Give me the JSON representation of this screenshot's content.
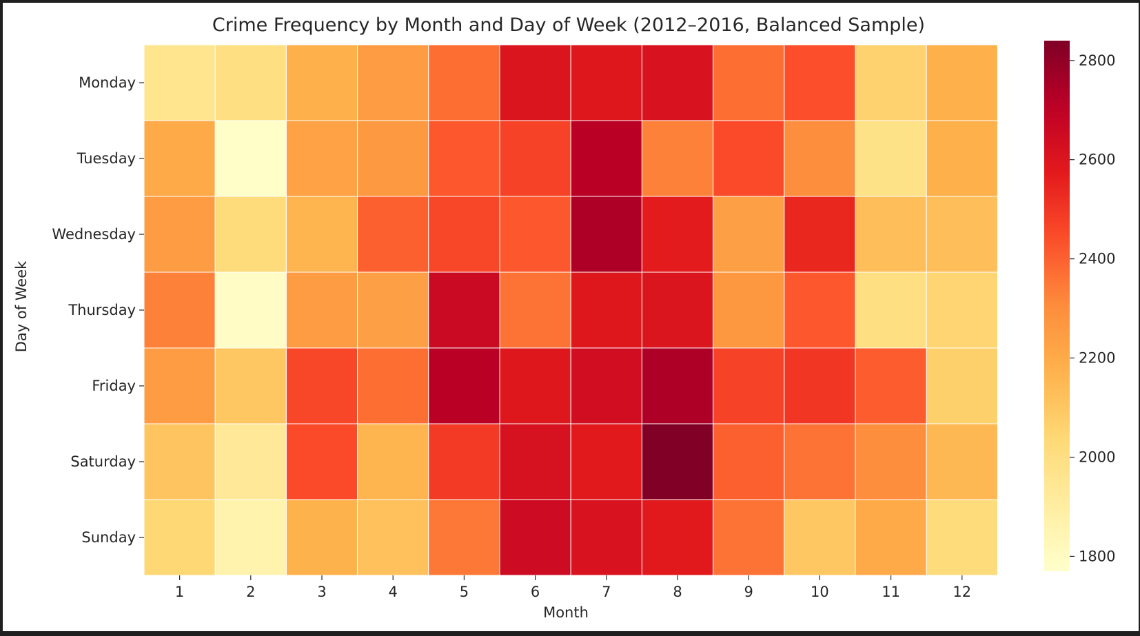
{
  "chart_data": {
    "type": "heatmap",
    "title": "Crime Frequency by Month and Day of Week (2012–2016, Balanced Sample)",
    "xlabel": "Month",
    "ylabel": "Day of Week",
    "x": [
      "1",
      "2",
      "3",
      "4",
      "5",
      "6",
      "7",
      "8",
      "9",
      "10",
      "11",
      "12"
    ],
    "y": [
      "Monday",
      "Tuesday",
      "Wednesday",
      "Thursday",
      "Friday",
      "Saturday",
      "Sunday"
    ],
    "values": [
      [
        1960,
        2000,
        2180,
        2250,
        2370,
        2600,
        2590,
        2610,
        2370,
        2440,
        2060,
        2180
      ],
      [
        2200,
        1780,
        2230,
        2260,
        2420,
        2470,
        2710,
        2330,
        2450,
        2300,
        1980,
        2180
      ],
      [
        2250,
        2020,
        2160,
        2400,
        2460,
        2420,
        2740,
        2570,
        2240,
        2540,
        2130,
        2130
      ],
      [
        2330,
        1790,
        2250,
        2240,
        2660,
        2360,
        2590,
        2600,
        2270,
        2420,
        2000,
        2050
      ],
      [
        2250,
        2100,
        2460,
        2370,
        2710,
        2590,
        2640,
        2740,
        2470,
        2500,
        2410,
        2070
      ],
      [
        2110,
        1930,
        2450,
        2160,
        2490,
        2620,
        2580,
        2840,
        2400,
        2360,
        2300,
        2150
      ],
      [
        2040,
        1860,
        2170,
        2120,
        2350,
        2650,
        2610,
        2580,
        2360,
        2100,
        2200,
        2020
      ]
    ],
    "colorbar": {
      "min": 1770,
      "max": 2840,
      "ticks": [
        1800,
        2000,
        2200,
        2400,
        2600,
        2800
      ],
      "cmap": "YlOrRd"
    },
    "grid": false,
    "cell_border_color": "#ffffff"
  }
}
